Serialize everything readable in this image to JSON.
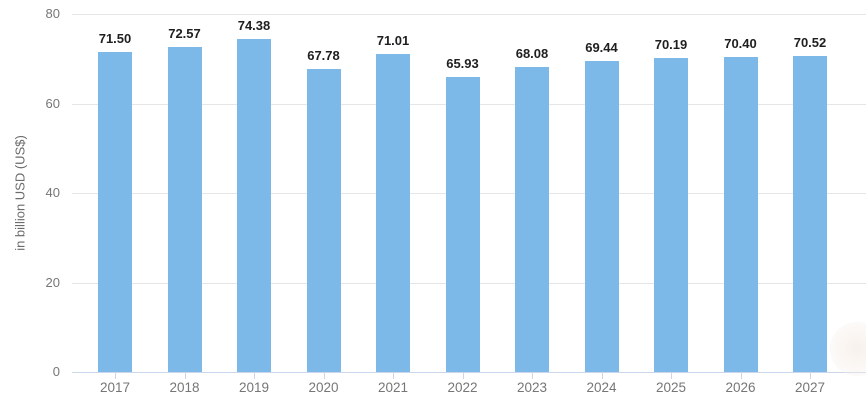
{
  "chart_data": {
    "type": "bar",
    "title": "",
    "xlabel": "",
    "ylabel": "in billion USD (US$)",
    "categories": [
      "2017",
      "2018",
      "2019",
      "2020",
      "2021",
      "2022",
      "2023",
      "2024",
      "2025",
      "2026",
      "2027"
    ],
    "values": [
      71.5,
      72.57,
      74.38,
      67.78,
      71.01,
      65.93,
      68.08,
      69.44,
      70.19,
      70.4,
      70.52
    ],
    "value_labels": [
      "71.50",
      "72.57",
      "74.38",
      "67.78",
      "71.01",
      "65.93",
      "68.08",
      "69.44",
      "70.19",
      "70.40",
      "70.52"
    ],
    "ylim": [
      0,
      80
    ],
    "yticks": [
      0,
      20,
      40,
      60,
      80
    ],
    "grid": true,
    "legend": "none",
    "colors": {
      "bar": "#7cb9e8",
      "gridline": "#e6e6e6",
      "axis_line": "#ccd6eb",
      "tick_label": "#767676",
      "value_label": "#1f1f1f",
      "background": "#ffffff"
    }
  }
}
